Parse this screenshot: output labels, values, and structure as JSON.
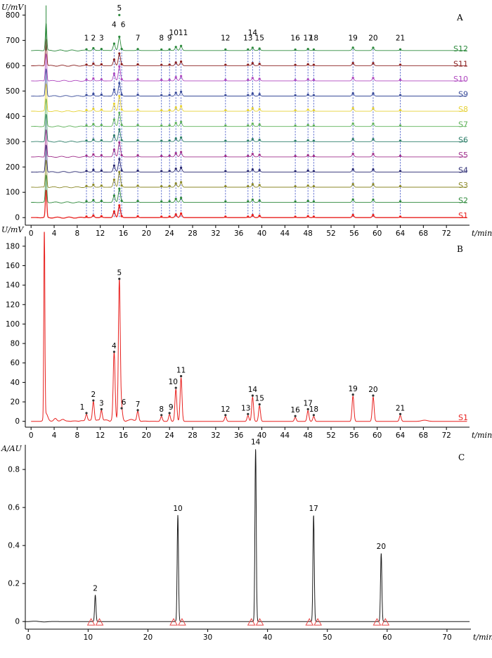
{
  "chart_data": [
    {
      "panel": "A",
      "type": "line",
      "title": "A",
      "ylabel": "U/mV",
      "xlabel": "t/min",
      "xlim": [
        -1,
        76
      ],
      "ylim": [
        -30,
        840
      ],
      "xticks": [
        0,
        4,
        8,
        12,
        16,
        20,
        24,
        28,
        32,
        36,
        40,
        44,
        48,
        52,
        56,
        60,
        64,
        68,
        72
      ],
      "yticks": [
        0,
        100,
        200,
        300,
        400,
        500,
        600,
        700,
        800
      ],
      "peak_times": [
        9.6,
        10.8,
        12.2,
        14.4,
        15.3,
        15.7,
        18.5,
        22.6,
        24.0,
        25.1,
        26.0,
        33.7,
        37.6,
        38.4,
        39.6,
        45.8,
        48.0,
        49.0,
        55.8,
        59.3,
        64.0
      ],
      "peak_labels": [
        "1",
        "2",
        "3",
        "4",
        "5",
        "6",
        "7",
        "8",
        "9",
        "10",
        "11",
        "12",
        "13",
        "14",
        "15",
        "16",
        "17",
        "18",
        "19",
        "20",
        "21"
      ],
      "peak_heights_mv": [
        7,
        20,
        11,
        70,
        145,
        12,
        10,
        5,
        7,
        33,
        45,
        5,
        6,
        25,
        16,
        4,
        11,
        5,
        26,
        25,
        6
      ],
      "series": [
        {
          "name": "S1",
          "offset": 0,
          "color": "#e8201e"
        },
        {
          "name": "S2",
          "offset": 60,
          "color": "#2f8a3c"
        },
        {
          "name": "S3",
          "offset": 120,
          "color": "#8c8a2a"
        },
        {
          "name": "S4",
          "offset": 180,
          "color": "#2a2a72"
        },
        {
          "name": "S5",
          "offset": 240,
          "color": "#a0308c"
        },
        {
          "name": "S6",
          "offset": 300,
          "color": "#2f7f6a"
        },
        {
          "name": "S7",
          "offset": 360,
          "color": "#5fb25a"
        },
        {
          "name": "S8",
          "offset": 420,
          "color": "#e6d237"
        },
        {
          "name": "S9",
          "offset": 480,
          "color": "#3a4c9a"
        },
        {
          "name": "S10",
          "offset": 540,
          "color": "#b04ac0"
        },
        {
          "name": "S11",
          "offset": 600,
          "color": "#8a1f1f"
        },
        {
          "name": "S12",
          "offset": 660,
          "color": "#2d8a3d"
        }
      ]
    },
    {
      "panel": "B",
      "type": "line",
      "title": "B",
      "ylabel": "U/mV",
      "xlabel": "t/min",
      "xlim": [
        -1,
        76
      ],
      "ylim": [
        -6,
        190
      ],
      "xticks": [
        0,
        4,
        8,
        12,
        16,
        20,
        24,
        28,
        32,
        36,
        40,
        44,
        48,
        52,
        56,
        60,
        64,
        68,
        72
      ],
      "yticks": [
        0,
        20,
        40,
        60,
        80,
        100,
        120,
        140,
        160,
        180
      ],
      "series_name": "S1",
      "color": "#e8201e",
      "solvent_peak": {
        "x": 2.3,
        "y": 300
      },
      "peaks": [
        {
          "label": "1",
          "x": 9.6,
          "y": 7
        },
        {
          "label": "2",
          "x": 10.8,
          "y": 20
        },
        {
          "label": "3",
          "x": 12.2,
          "y": 11
        },
        {
          "label": "4",
          "x": 14.4,
          "y": 70
        },
        {
          "label": "5",
          "x": 15.3,
          "y": 145
        },
        {
          "label": "6",
          "x": 15.7,
          "y": 12
        },
        {
          "label": "7",
          "x": 18.5,
          "y": 10
        },
        {
          "label": "8",
          "x": 22.6,
          "y": 5
        },
        {
          "label": "9",
          "x": 24.0,
          "y": 7
        },
        {
          "label": "10",
          "x": 25.1,
          "y": 33
        },
        {
          "label": "11",
          "x": 26.0,
          "y": 45
        },
        {
          "label": "12",
          "x": 33.7,
          "y": 5
        },
        {
          "label": "13",
          "x": 37.6,
          "y": 6
        },
        {
          "label": "14",
          "x": 38.4,
          "y": 25
        },
        {
          "label": "15",
          "x": 39.6,
          "y": 16
        },
        {
          "label": "16",
          "x": 45.8,
          "y": 4
        },
        {
          "label": "17",
          "x": 48.0,
          "y": 11
        },
        {
          "label": "18",
          "x": 49.0,
          "y": 5
        },
        {
          "label": "19",
          "x": 55.8,
          "y": 26
        },
        {
          "label": "20",
          "x": 59.3,
          "y": 25
        },
        {
          "label": "21",
          "x": 64.0,
          "y": 6
        }
      ]
    },
    {
      "panel": "C",
      "type": "line",
      "title": "C",
      "ylabel": "A/AU",
      "xlabel": "t/min",
      "xlim": [
        -0.5,
        74
      ],
      "ylim": [
        -0.04,
        0.93
      ],
      "xticks": [
        0,
        10,
        20,
        30,
        40,
        50,
        60,
        70
      ],
      "yticks": [
        0,
        0.2,
        0.4,
        0.6,
        0.8
      ],
      "ytick_labels": [
        "0",
        "0.2",
        "0.4",
        "0.6",
        "0.8"
      ],
      "color": "#1a1a1a",
      "marker_color": "#e84a4a",
      "peaks": [
        {
          "label": "2",
          "x": 11.2,
          "y": 0.14
        },
        {
          "label": "10",
          "x": 25.0,
          "y": 0.56
        },
        {
          "label": "14",
          "x": 38.0,
          "y": 0.91
        },
        {
          "label": "17",
          "x": 47.7,
          "y": 0.56
        },
        {
          "label": "20",
          "x": 59.0,
          "y": 0.36
        }
      ]
    }
  ]
}
